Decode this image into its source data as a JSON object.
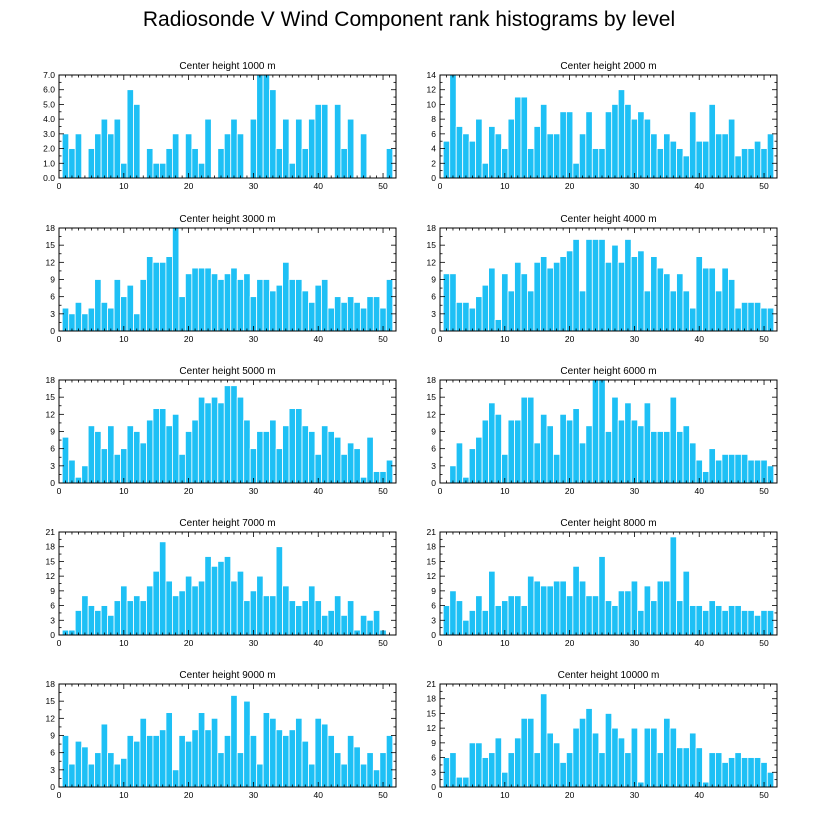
{
  "title": "Radiosonde V Wind Component rank histograms by level",
  "colors": {
    "bar": "#1ec0f5",
    "bar_edge": "#ffffff",
    "axis": "#000000"
  },
  "chart_data": [
    {
      "type": "bar",
      "title": "Center height 1000 m",
      "xlim": [
        0,
        52
      ],
      "ylim": [
        0,
        7
      ],
      "xticks": [
        0,
        10,
        20,
        30,
        40,
        50
      ],
      "yticks": [
        0,
        1,
        2,
        3,
        4,
        5,
        6,
        7
      ],
      "ytick_labels": [
        "0.0",
        "1.0",
        "2.0",
        "3.0",
        "4.0",
        "5.0",
        "6.0",
        "7.0"
      ],
      "x": [
        1,
        2,
        3,
        4,
        5,
        6,
        7,
        8,
        9,
        10,
        11,
        12,
        13,
        14,
        15,
        16,
        17,
        18,
        19,
        20,
        21,
        22,
        23,
        24,
        25,
        26,
        27,
        28,
        29,
        30,
        31,
        32,
        33,
        34,
        35,
        36,
        37,
        38,
        39,
        40,
        41,
        42,
        43,
        44,
        45,
        46,
        47,
        48,
        49,
        50,
        51
      ],
      "values": [
        3,
        2,
        3,
        0,
        2,
        3,
        4,
        3,
        4,
        1,
        6,
        5,
        0,
        2,
        1,
        1,
        2,
        3,
        0,
        3,
        2,
        1,
        4,
        0,
        2,
        3,
        4,
        3,
        0,
        4,
        7,
        7,
        6,
        2,
        4,
        1,
        4,
        2,
        4,
        5,
        5,
        0,
        5,
        2,
        4,
        0,
        3,
        0,
        0,
        0,
        2
      ]
    },
    {
      "type": "bar",
      "title": "Center height 2000 m",
      "xlim": [
        0,
        52
      ],
      "ylim": [
        0,
        14
      ],
      "xticks": [
        0,
        10,
        20,
        30,
        40,
        50
      ],
      "yticks": [
        0,
        2,
        4,
        6,
        8,
        10,
        12,
        14
      ],
      "ytick_labels": [
        "0",
        "2",
        "4",
        "6",
        "8",
        "10",
        "12",
        "14"
      ],
      "x": [
        1,
        2,
        3,
        4,
        5,
        6,
        7,
        8,
        9,
        10,
        11,
        12,
        13,
        14,
        15,
        16,
        17,
        18,
        19,
        20,
        21,
        22,
        23,
        24,
        25,
        26,
        27,
        28,
        29,
        30,
        31,
        32,
        33,
        34,
        35,
        36,
        37,
        38,
        39,
        40,
        41,
        42,
        43,
        44,
        45,
        46,
        47,
        48,
        49,
        50,
        51
      ],
      "values": [
        5,
        14,
        7,
        6,
        5,
        8,
        2,
        7,
        6,
        4,
        8,
        11,
        11,
        4,
        7,
        10,
        6,
        6,
        9,
        9,
        2,
        6,
        9,
        4,
        4,
        9,
        10,
        12,
        10,
        8,
        9,
        8,
        6,
        4,
        6,
        5,
        4,
        3,
        9,
        5,
        5,
        10,
        6,
        6,
        8,
        3,
        4,
        4,
        5,
        4,
        6
      ]
    },
    {
      "type": "bar",
      "title": "Center height 3000 m",
      "xlim": [
        0,
        52
      ],
      "ylim": [
        0,
        18
      ],
      "xticks": [
        0,
        10,
        20,
        30,
        40,
        50
      ],
      "yticks": [
        0,
        3,
        6,
        9,
        12,
        15,
        18
      ],
      "ytick_labels": [
        "0",
        "3",
        "6",
        "9",
        "12",
        "15",
        "18"
      ],
      "x": [
        1,
        2,
        3,
        4,
        5,
        6,
        7,
        8,
        9,
        10,
        11,
        12,
        13,
        14,
        15,
        16,
        17,
        18,
        19,
        20,
        21,
        22,
        23,
        24,
        25,
        26,
        27,
        28,
        29,
        30,
        31,
        32,
        33,
        34,
        35,
        36,
        37,
        38,
        39,
        40,
        41,
        42,
        43,
        44,
        45,
        46,
        47,
        48,
        49,
        50,
        51
      ],
      "values": [
        4,
        3,
        5,
        3,
        4,
        9,
        5,
        4,
        9,
        6,
        8,
        3,
        9,
        13,
        12,
        12,
        13,
        18,
        6,
        10,
        11,
        11,
        11,
        10,
        9,
        10,
        11,
        9,
        10,
        6,
        9,
        9,
        7,
        8,
        12,
        9,
        9,
        7,
        5,
        8,
        9,
        4,
        6,
        5,
        6,
        5,
        4,
        6,
        6,
        4,
        9
      ]
    },
    {
      "type": "bar",
      "title": "Center height 4000 m",
      "xlim": [
        0,
        52
      ],
      "ylim": [
        0,
        18
      ],
      "xticks": [
        0,
        10,
        20,
        30,
        40,
        50
      ],
      "yticks": [
        0,
        3,
        6,
        9,
        12,
        15,
        18
      ],
      "ytick_labels": [
        "0",
        "3",
        "6",
        "9",
        "12",
        "15",
        "18"
      ],
      "x": [
        1,
        2,
        3,
        4,
        5,
        6,
        7,
        8,
        9,
        10,
        11,
        12,
        13,
        14,
        15,
        16,
        17,
        18,
        19,
        20,
        21,
        22,
        23,
        24,
        25,
        26,
        27,
        28,
        29,
        30,
        31,
        32,
        33,
        34,
        35,
        36,
        37,
        38,
        39,
        40,
        41,
        42,
        43,
        44,
        45,
        46,
        47,
        48,
        49,
        50,
        51
      ],
      "values": [
        10,
        10,
        5,
        5,
        4,
        6,
        8,
        11,
        2,
        10,
        7,
        12,
        10,
        7,
        12,
        13,
        11,
        12,
        13,
        14,
        16,
        7,
        16,
        16,
        16,
        12,
        15,
        12,
        16,
        13,
        14,
        7,
        13,
        11,
        10,
        7,
        10,
        7,
        4,
        13,
        11,
        11,
        7,
        11,
        9,
        4,
        5,
        5,
        5,
        4,
        4
      ]
    },
    {
      "type": "bar",
      "title": "Center height 5000 m",
      "xlim": [
        0,
        52
      ],
      "ylim": [
        0,
        18
      ],
      "xticks": [
        0,
        10,
        20,
        30,
        40,
        50
      ],
      "yticks": [
        0,
        3,
        6,
        9,
        12,
        15,
        18
      ],
      "ytick_labels": [
        "0",
        "3",
        "6",
        "9",
        "12",
        "15",
        "18"
      ],
      "x": [
        1,
        2,
        3,
        4,
        5,
        6,
        7,
        8,
        9,
        10,
        11,
        12,
        13,
        14,
        15,
        16,
        17,
        18,
        19,
        20,
        21,
        22,
        23,
        24,
        25,
        26,
        27,
        28,
        29,
        30,
        31,
        32,
        33,
        34,
        35,
        36,
        37,
        38,
        39,
        40,
        41,
        42,
        43,
        44,
        45,
        46,
        47,
        48,
        49,
        50,
        51
      ],
      "values": [
        8,
        4,
        1,
        3,
        10,
        9,
        6,
        10,
        5,
        6,
        10,
        9,
        7,
        11,
        13,
        13,
        10,
        12,
        5,
        9,
        11,
        15,
        14,
        15,
        14,
        17,
        17,
        15,
        11,
        6,
        9,
        9,
        11,
        6,
        10,
        13,
        13,
        10,
        9,
        5,
        10,
        9,
        8,
        5,
        7,
        6,
        1,
        8,
        2,
        2,
        4
      ]
    },
    {
      "type": "bar",
      "title": "Center height 6000 m",
      "xlim": [
        0,
        52
      ],
      "ylim": [
        0,
        18
      ],
      "xticks": [
        0,
        10,
        20,
        30,
        40,
        50
      ],
      "yticks": [
        0,
        3,
        6,
        9,
        12,
        15,
        18
      ],
      "ytick_labels": [
        "0",
        "3",
        "6",
        "9",
        "12",
        "15",
        "18"
      ],
      "x": [
        1,
        2,
        3,
        4,
        5,
        6,
        7,
        8,
        9,
        10,
        11,
        12,
        13,
        14,
        15,
        16,
        17,
        18,
        19,
        20,
        21,
        22,
        23,
        24,
        25,
        26,
        27,
        28,
        29,
        30,
        31,
        32,
        33,
        34,
        35,
        36,
        37,
        38,
        39,
        40,
        41,
        42,
        43,
        44,
        45,
        46,
        47,
        48,
        49,
        50,
        51
      ],
      "values": [
        0,
        3,
        7,
        1,
        6,
        8,
        11,
        14,
        12,
        5,
        11,
        11,
        15,
        15,
        7,
        12,
        10,
        5,
        12,
        11,
        13,
        7,
        10,
        18,
        18,
        9,
        15,
        11,
        14,
        11,
        10,
        14,
        9,
        9,
        9,
        15,
        9,
        10,
        7,
        4,
        2,
        6,
        4,
        5,
        5,
        5,
        5,
        4,
        4,
        4,
        3
      ]
    },
    {
      "type": "bar",
      "title": "Center height 7000 m",
      "xlim": [
        0,
        52
      ],
      "ylim": [
        0,
        21
      ],
      "xticks": [
        0,
        10,
        20,
        30,
        40,
        50
      ],
      "yticks": [
        0,
        3,
        6,
        9,
        12,
        15,
        18,
        21
      ],
      "ytick_labels": [
        "0",
        "3",
        "6",
        "9",
        "12",
        "15",
        "18",
        "21"
      ],
      "x": [
        1,
        2,
        3,
        4,
        5,
        6,
        7,
        8,
        9,
        10,
        11,
        12,
        13,
        14,
        15,
        16,
        17,
        18,
        19,
        20,
        21,
        22,
        23,
        24,
        25,
        26,
        27,
        28,
        29,
        30,
        31,
        32,
        33,
        34,
        35,
        36,
        37,
        38,
        39,
        40,
        41,
        42,
        43,
        44,
        45,
        46,
        47,
        48,
        49,
        50,
        51
      ],
      "values": [
        1,
        1,
        5,
        8,
        6,
        5,
        6,
        4,
        7,
        10,
        7,
        8,
        7,
        10,
        13,
        19,
        11,
        8,
        9,
        12,
        10,
        11,
        16,
        14,
        15,
        16,
        11,
        13,
        7,
        9,
        12,
        8,
        8,
        18,
        10,
        7,
        6,
        7,
        10,
        7,
        4,
        5,
        8,
        4,
        7,
        1,
        4,
        3,
        5,
        1,
        0
      ]
    },
    {
      "type": "bar",
      "title": "Center height 8000 m",
      "xlim": [
        0,
        52
      ],
      "ylim": [
        0,
        21
      ],
      "xticks": [
        0,
        10,
        20,
        30,
        40,
        50
      ],
      "yticks": [
        0,
        3,
        6,
        9,
        12,
        15,
        18,
        21
      ],
      "ytick_labels": [
        "0",
        "3",
        "6",
        "9",
        "12",
        "15",
        "18",
        "21"
      ],
      "x": [
        1,
        2,
        3,
        4,
        5,
        6,
        7,
        8,
        9,
        10,
        11,
        12,
        13,
        14,
        15,
        16,
        17,
        18,
        19,
        20,
        21,
        22,
        23,
        24,
        25,
        26,
        27,
        28,
        29,
        30,
        31,
        32,
        33,
        34,
        35,
        36,
        37,
        38,
        39,
        40,
        41,
        42,
        43,
        44,
        45,
        46,
        47,
        48,
        49,
        50,
        51
      ],
      "values": [
        6,
        9,
        7,
        3,
        5,
        8,
        5,
        13,
        6,
        7,
        8,
        8,
        6,
        12,
        11,
        10,
        10,
        11,
        11,
        8,
        14,
        11,
        8,
        8,
        16,
        7,
        6,
        9,
        9,
        11,
        5,
        10,
        7,
        11,
        11,
        20,
        7,
        13,
        6,
        6,
        5,
        7,
        6,
        5,
        6,
        6,
        5,
        5,
        4,
        5,
        5
      ]
    },
    {
      "type": "bar",
      "title": "Center height 9000 m",
      "xlim": [
        0,
        52
      ],
      "ylim": [
        0,
        18
      ],
      "xticks": [
        0,
        10,
        20,
        30,
        40,
        50
      ],
      "yticks": [
        0,
        3,
        6,
        9,
        12,
        15,
        18
      ],
      "ytick_labels": [
        "0",
        "3",
        "6",
        "9",
        "12",
        "15",
        "18"
      ],
      "x": [
        1,
        2,
        3,
        4,
        5,
        6,
        7,
        8,
        9,
        10,
        11,
        12,
        13,
        14,
        15,
        16,
        17,
        18,
        19,
        20,
        21,
        22,
        23,
        24,
        25,
        26,
        27,
        28,
        29,
        30,
        31,
        32,
        33,
        34,
        35,
        36,
        37,
        38,
        39,
        40,
        41,
        42,
        43,
        44,
        45,
        46,
        47,
        48,
        49,
        50,
        51
      ],
      "values": [
        9,
        4,
        8,
        7,
        4,
        6,
        11,
        6,
        4,
        5,
        9,
        8,
        12,
        9,
        9,
        10,
        13,
        3,
        9,
        8,
        10,
        13,
        10,
        12,
        6,
        9,
        16,
        6,
        15,
        9,
        4,
        13,
        12,
        10,
        9,
        10,
        12,
        8,
        4,
        12,
        11,
        9,
        6,
        4,
        9,
        7,
        4,
        6,
        3,
        6,
        9
      ]
    },
    {
      "type": "bar",
      "title": "Center height 10000 m",
      "xlim": [
        0,
        52
      ],
      "ylim": [
        0,
        21
      ],
      "xticks": [
        0,
        10,
        20,
        30,
        40,
        50
      ],
      "yticks": [
        0,
        3,
        6,
        9,
        12,
        15,
        18,
        21
      ],
      "ytick_labels": [
        "0",
        "3",
        "6",
        "9",
        "12",
        "15",
        "18",
        "21"
      ],
      "x": [
        1,
        2,
        3,
        4,
        5,
        6,
        7,
        8,
        9,
        10,
        11,
        12,
        13,
        14,
        15,
        16,
        17,
        18,
        19,
        20,
        21,
        22,
        23,
        24,
        25,
        26,
        27,
        28,
        29,
        30,
        31,
        32,
        33,
        34,
        35,
        36,
        37,
        38,
        39,
        40,
        41,
        42,
        43,
        44,
        45,
        46,
        47,
        48,
        49,
        50,
        51
      ],
      "values": [
        6,
        7,
        2,
        2,
        9,
        9,
        6,
        7,
        10,
        3,
        7,
        10,
        14,
        14,
        7,
        19,
        11,
        9,
        5,
        7,
        12,
        14,
        16,
        11,
        7,
        15,
        12,
        10,
        7,
        12,
        1,
        12,
        12,
        7,
        14,
        12,
        8,
        8,
        11,
        8,
        1,
        7,
        7,
        5,
        6,
        7,
        6,
        6,
        6,
        5,
        3
      ]
    }
  ]
}
